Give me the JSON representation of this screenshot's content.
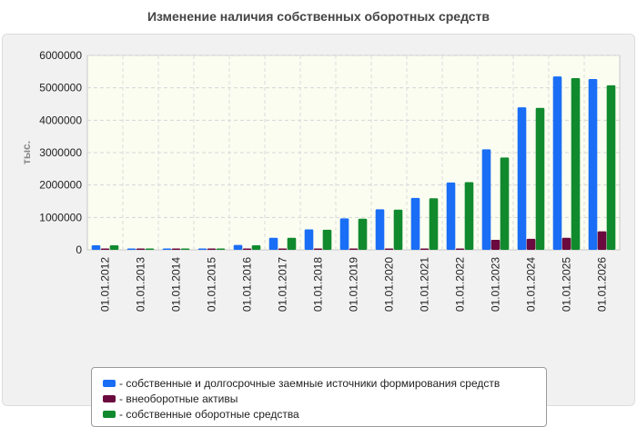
{
  "chart_data": {
    "type": "bar",
    "title": "Изменение наличия собственных оборотных средств",
    "ylabel": "тыс.",
    "xlabel": "",
    "ylim": [
      0,
      6000000
    ],
    "yticks": [
      0,
      1000000,
      2000000,
      3000000,
      4000000,
      5000000,
      6000000
    ],
    "grid": true,
    "legend_position": "bottom",
    "categories": [
      "01.01.2012",
      "01.01.2013",
      "01.01.2014",
      "01.01.2015",
      "01.01.2016",
      "01.01.2017",
      "01.01.2018",
      "01.01.2019",
      "01.01.2020",
      "01.01.2021",
      "01.01.2022",
      "01.01.2023",
      "01.01.2024",
      "01.01.2025",
      "01.01.2026"
    ],
    "series": [
      {
        "name": "- собственные и долгосрочные заемные источники формирования средств",
        "color": "#1a6ef5",
        "values": [
          140000,
          30000,
          30000,
          30000,
          150000,
          370000,
          630000,
          970000,
          1250000,
          1600000,
          2080000,
          3100000,
          4400000,
          5350000,
          5270000
        ]
      },
      {
        "name": "- внеоборотные активы",
        "color": "#6b0a3e",
        "values": [
          10000,
          10000,
          10000,
          10000,
          10000,
          10000,
          10000,
          20000,
          20000,
          20000,
          40000,
          310000,
          340000,
          370000,
          570000
        ]
      },
      {
        "name": "- собственные оборотные средства",
        "color": "#118a2e",
        "values": [
          140000,
          20000,
          20000,
          20000,
          140000,
          370000,
          620000,
          960000,
          1240000,
          1590000,
          2090000,
          2850000,
          4380000,
          5300000,
          5080000
        ]
      }
    ]
  }
}
